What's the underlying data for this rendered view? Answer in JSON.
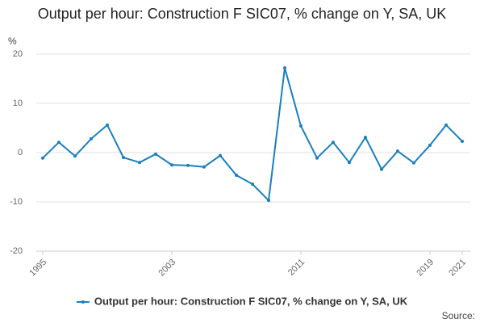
{
  "chart_data": {
    "type": "line",
    "title": "Output per hour: Construction F SIC07, % change on Y, SA, UK",
    "y_unit": "%",
    "source": "Source:",
    "x": [
      1995,
      1996,
      1997,
      1998,
      1999,
      2000,
      2001,
      2002,
      2003,
      2004,
      2005,
      2006,
      2007,
      2008,
      2009,
      2010,
      2011,
      2012,
      2013,
      2014,
      2015,
      2016,
      2017,
      2018,
      2019,
      2020,
      2021
    ],
    "xlim": [
      1995,
      2021
    ],
    "xticks": [
      1995,
      2003,
      2011,
      2019,
      2021
    ],
    "ylim": [
      -20,
      20
    ],
    "yticks": [
      -20,
      -10,
      0,
      10,
      20
    ],
    "grid": true,
    "legend": "bottom",
    "series": [
      {
        "name": "Output per hour: Construction F SIC07, % change on Y, SA, UK",
        "color": "#1a7fbf",
        "values": [
          -1.1,
          2.1,
          -0.7,
          2.8,
          5.6,
          -1.0,
          -2.0,
          -0.3,
          -2.5,
          -2.6,
          -2.9,
          -0.6,
          -4.6,
          -6.4,
          -9.7,
          17.2,
          5.4,
          -1.1,
          2.1,
          -2.0,
          3.1,
          -3.4,
          0.3,
          -2.1,
          1.5,
          5.6,
          2.3
        ]
      }
    ]
  }
}
